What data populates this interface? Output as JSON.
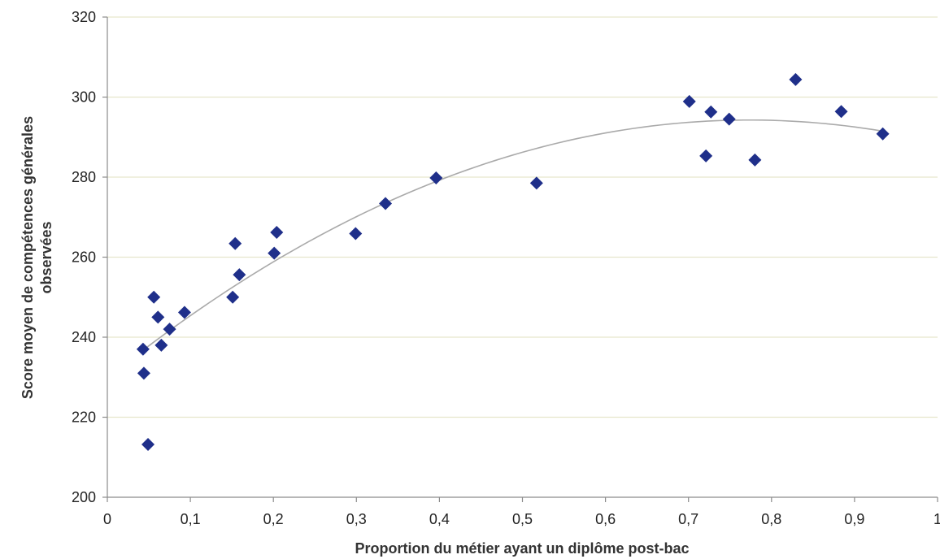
{
  "chart_data": {
    "type": "scatter",
    "title": "",
    "xlabel": "Proportion du métier ayant un diplôme post-bac",
    "ylabel_lines": [
      "Score moyen de compétences générales",
      "observées"
    ],
    "xlim": [
      0,
      1
    ],
    "ylim": [
      200,
      320
    ],
    "x_ticks": [
      0,
      0.1,
      0.2,
      0.3,
      0.4,
      0.5,
      0.6,
      0.7,
      0.8,
      0.9,
      1
    ],
    "x_tick_labels": [
      "0",
      "0,1",
      "0,2",
      "0,3",
      "0,4",
      "0,5",
      "0,6",
      "0,7",
      "0,8",
      "0,9",
      "1"
    ],
    "y_ticks": [
      200,
      220,
      240,
      260,
      280,
      300,
      320
    ],
    "y_tick_labels": [
      "200",
      "220",
      "240",
      "260",
      "280",
      "300",
      "320"
    ],
    "grid": "horizontal",
    "legend": "none",
    "colors": {
      "points": "#1f2f8a",
      "trend": "#aaaaaa",
      "grid": "#e6e6cc",
      "axis": "#8c8c8c"
    },
    "series": [
      {
        "marker": "diamond",
        "points": [
          {
            "x": 0.043,
            "y": 237.0
          },
          {
            "x": 0.044,
            "y": 231.0
          },
          {
            "x": 0.049,
            "y": 213.2
          },
          {
            "x": 0.056,
            "y": 250.0
          },
          {
            "x": 0.061,
            "y": 245.0
          },
          {
            "x": 0.065,
            "y": 238.0
          },
          {
            "x": 0.075,
            "y": 242.0
          },
          {
            "x": 0.093,
            "y": 246.2
          },
          {
            "x": 0.151,
            "y": 250.0
          },
          {
            "x": 0.154,
            "y": 263.4
          },
          {
            "x": 0.159,
            "y": 255.6
          },
          {
            "x": 0.201,
            "y": 261.0
          },
          {
            "x": 0.204,
            "y": 266.2
          },
          {
            "x": 0.299,
            "y": 265.9
          },
          {
            "x": 0.335,
            "y": 273.4
          },
          {
            "x": 0.396,
            "y": 279.8
          },
          {
            "x": 0.517,
            "y": 278.5
          },
          {
            "x": 0.701,
            "y": 298.9
          },
          {
            "x": 0.721,
            "y": 285.3
          },
          {
            "x": 0.727,
            "y": 296.3
          },
          {
            "x": 0.749,
            "y": 294.5
          },
          {
            "x": 0.78,
            "y": 284.3
          },
          {
            "x": 0.829,
            "y": 304.4
          },
          {
            "x": 0.884,
            "y": 296.4
          },
          {
            "x": 0.934,
            "y": 290.8
          }
        ]
      }
    ],
    "trendline": {
      "type": "polynomial-2",
      "x_range": [
        0.043,
        0.934
      ],
      "points": [
        {
          "x": 0.043,
          "y": 236.5
        },
        {
          "x": 0.1,
          "y": 245.4
        },
        {
          "x": 0.2,
          "y": 259.0
        },
        {
          "x": 0.3,
          "y": 270.3
        },
        {
          "x": 0.4,
          "y": 279.4
        },
        {
          "x": 0.5,
          "y": 286.2
        },
        {
          "x": 0.6,
          "y": 290.8
        },
        {
          "x": 0.7,
          "y": 293.5
        },
        {
          "x": 0.8,
          "y": 294.1
        },
        {
          "x": 0.934,
          "y": 291.7
        }
      ]
    }
  }
}
